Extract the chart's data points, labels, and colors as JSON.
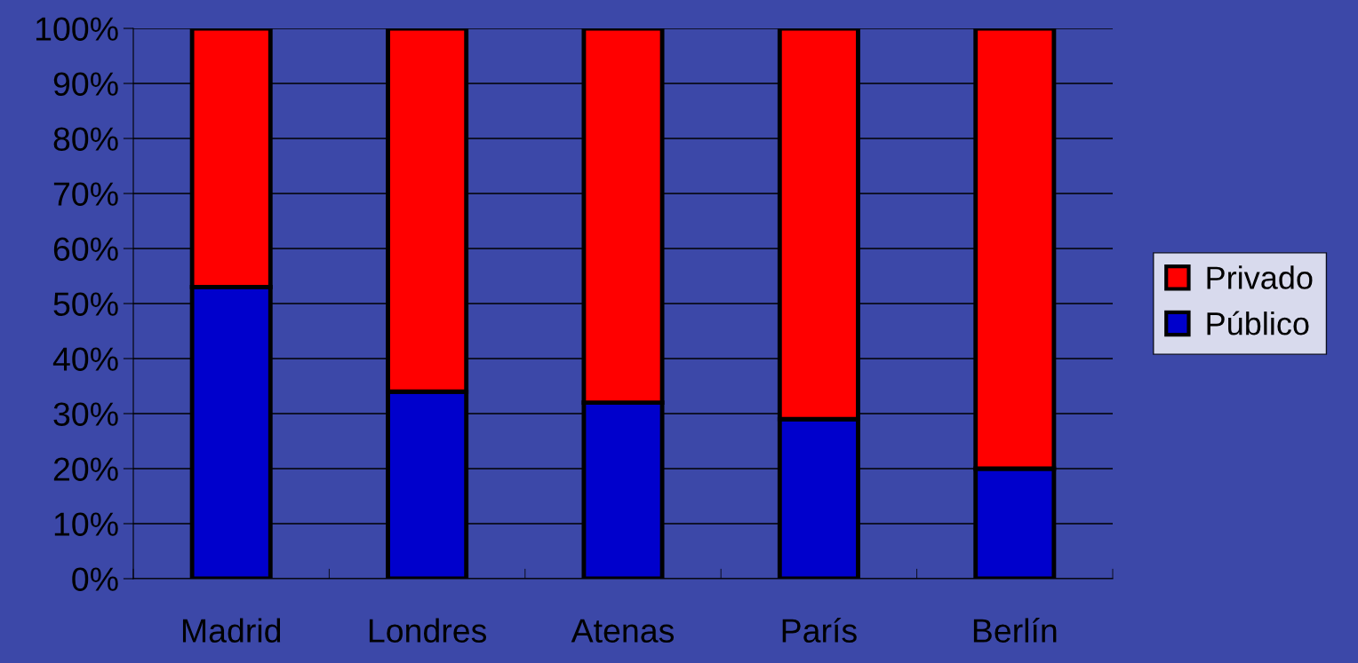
{
  "chart_data": {
    "type": "bar",
    "stacked": true,
    "categories": [
      "Madrid",
      "Londres",
      "Atenas",
      "París",
      "Berlín"
    ],
    "series": [
      {
        "name": "Público",
        "color": "#0000cc",
        "values": [
          53,
          34,
          32,
          29,
          20
        ]
      },
      {
        "name": "Privado",
        "color": "#ff0000",
        "values": [
          47,
          66,
          68,
          71,
          80
        ]
      }
    ],
    "ylim": [
      0,
      100
    ],
    "yticks": [
      {
        "value": 0,
        "label": "0%"
      },
      {
        "value": 10,
        "label": "10%"
      },
      {
        "value": 20,
        "label": "20%"
      },
      {
        "value": 30,
        "label": "30%"
      },
      {
        "value": 40,
        "label": "40%"
      },
      {
        "value": 50,
        "label": "50%"
      },
      {
        "value": 60,
        "label": "60%"
      },
      {
        "value": 70,
        "label": "70%"
      },
      {
        "value": 80,
        "label": "80%"
      },
      {
        "value": 90,
        "label": "90%"
      },
      {
        "value": 100,
        "label": "100%"
      }
    ],
    "grid": "y",
    "legend": "right"
  }
}
